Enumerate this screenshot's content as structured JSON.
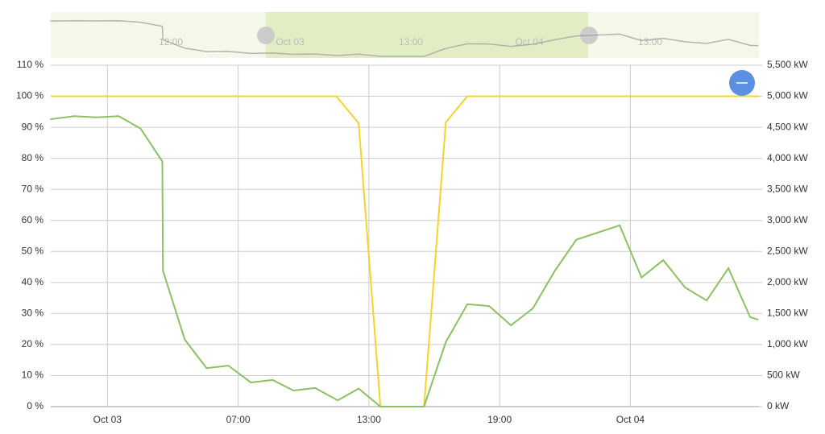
{
  "navigator": {
    "labels": [
      "12:00",
      "Oct 03",
      "13:00",
      "Oct 04",
      "13:00"
    ]
  },
  "chart_data": {
    "type": "line",
    "xlim": [
      -1.6,
      30.9
    ],
    "xticks": [
      {
        "value": 1,
        "label": "Oct 03"
      },
      {
        "value": 7,
        "label": "07:00"
      },
      {
        "value": 13,
        "label": "13:00"
      },
      {
        "value": 19,
        "label": "19:00"
      },
      {
        "value": 25,
        "label": "Oct 04"
      }
    ],
    "ylim": [
      0,
      110
    ],
    "yticks": [
      {
        "value": 0,
        "label": "0 %"
      },
      {
        "value": 10,
        "label": "10 %"
      },
      {
        "value": 20,
        "label": "20 %"
      },
      {
        "value": 30,
        "label": "30 %"
      },
      {
        "value": 40,
        "label": "40 %"
      },
      {
        "value": 50,
        "label": "50 %"
      },
      {
        "value": 60,
        "label": "60 %"
      },
      {
        "value": 70,
        "label": "70 %"
      },
      {
        "value": 80,
        "label": "80 %"
      },
      {
        "value": 90,
        "label": "90 %"
      },
      {
        "value": 100,
        "label": "100 %"
      },
      {
        "value": 110,
        "label": "110 %"
      }
    ],
    "y2lim": [
      0,
      5500
    ],
    "y2ticks": [
      {
        "value": 0,
        "label": "0 kW"
      },
      {
        "value": 500,
        "label": "500 kW"
      },
      {
        "value": 1000,
        "label": "1,000 kW"
      },
      {
        "value": 1500,
        "label": "1,500 kW"
      },
      {
        "value": 2000,
        "label": "2,000 kW"
      },
      {
        "value": 2500,
        "label": "2,500 kW"
      },
      {
        "value": 3000,
        "label": "3,000 kW"
      },
      {
        "value": 3500,
        "label": "3,500 kW"
      },
      {
        "value": 4000,
        "label": "4,000 kW"
      },
      {
        "value": 4500,
        "label": "4,500 kW"
      },
      {
        "value": 5000,
        "label": "5,000 kW"
      },
      {
        "value": 5500,
        "label": "5,500 kW"
      }
    ],
    "grid": true,
    "series": [
      {
        "color": "#f5d328",
        "axis": "y",
        "x": [
          -1.6,
          11.5,
          12.53,
          13.53,
          15.53,
          16.53,
          17.52,
          30.9
        ],
        "values": [
          100,
          100,
          91.3,
          0,
          0,
          91.6,
          100,
          100
        ]
      },
      {
        "color": "#8cc063",
        "axis": "y2",
        "x": [
          -1.62,
          -0.52,
          0.48,
          1.52,
          2.52,
          3.52,
          3.55,
          4.55,
          5.55,
          6.55,
          7.58,
          8.58,
          9.54,
          10.54,
          11.57,
          12.53,
          13.53,
          15.53,
          16.53,
          17.52,
          18.52,
          19.52,
          20.52,
          21.52,
          22.52,
          24.51,
          25.51,
          26.51,
          27.51,
          28.5,
          29.5,
          30.5,
          30.87
        ],
        "values": [
          4630,
          4680,
          4660,
          4680,
          4480,
          3950,
          2190,
          1080,
          620,
          660,
          390,
          430,
          260,
          300,
          100,
          290,
          0,
          0,
          1040,
          1650,
          1620,
          1310,
          1580,
          2180,
          2690,
          2920,
          2080,
          2360,
          1920,
          1710,
          2230,
          1440,
          1400
        ]
      }
    ]
  }
}
